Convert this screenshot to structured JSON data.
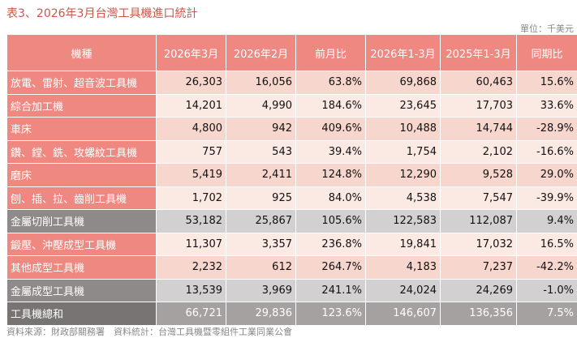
{
  "title": "表3、2026年3月台灣工具機進口統計",
  "unit": "單位：千美元",
  "headers": [
    "機種",
    "2026年3月",
    "2026年2月",
    "前月比",
    "2026年1-3月",
    "2025年1-3月",
    "同期比"
  ],
  "rows": [
    {
      "type": "dark",
      "cells": [
        "放電、雷射、超音波工具機",
        "26,303",
        "16,056",
        "63.8%",
        "69,868",
        "60,463",
        "15.6%"
      ]
    },
    {
      "type": "light",
      "cells": [
        "綜合加工機",
        "14,201",
        "4,990",
        "184.6%",
        "23,645",
        "17,703",
        "33.6%"
      ]
    },
    {
      "type": "dark",
      "cells": [
        "車床",
        "4,800",
        "942",
        "409.6%",
        "10,488",
        "14,744",
        "-28.9%"
      ]
    },
    {
      "type": "light",
      "cells": [
        "鑽、鏜、銑、攻螺紋工具機",
        "757",
        "543",
        "39.4%",
        "1,754",
        "2,102",
        "-16.6%"
      ]
    },
    {
      "type": "dark",
      "cells": [
        "磨床",
        "5,419",
        "2,411",
        "124.8%",
        "12,290",
        "9,528",
        "29.0%"
      ]
    },
    {
      "type": "light",
      "cells": [
        "刨、插、拉、齒削工具機",
        "1,702",
        "925",
        "84.0%",
        "4,538",
        "7,547",
        "-39.9%"
      ]
    },
    {
      "type": "sub",
      "cells": [
        "金屬切削工具機",
        "53,182",
        "25,867",
        "105.6%",
        "122,583",
        "112,087",
        "9.4%"
      ]
    },
    {
      "type": "light",
      "cells": [
        "鍛壓、沖壓成型工具機",
        "11,307",
        "3,357",
        "236.8%",
        "19,841",
        "17,032",
        "16.5%"
      ]
    },
    {
      "type": "dark",
      "cells": [
        "其他成型工具機",
        "2,232",
        "612",
        "264.7%",
        "4,183",
        "7,237",
        "-42.2%"
      ]
    },
    {
      "type": "sub",
      "cells": [
        "金屬成型工具機",
        "13,539",
        "3,969",
        "241.1%",
        "24,024",
        "24,269",
        "-1.0%"
      ]
    },
    {
      "type": "total",
      "cells": [
        "工具機總和",
        "66,721",
        "29,836",
        "123.6%",
        "146,607",
        "136,356",
        "7.5%"
      ]
    }
  ],
  "footer": "資料來源：財政部關務署　資料統計：台灣工具機暨零組件工業同業公會"
}
